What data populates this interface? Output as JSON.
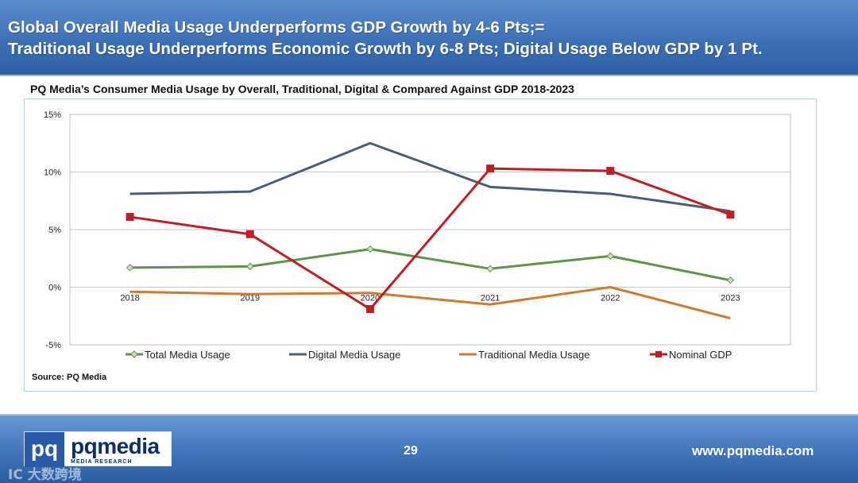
{
  "header": {
    "line1": "Global Overall Media Usage Underperforms GDP Growth by 4-6 Pts;=",
    "line2": "Traditional Usage Underperforms Economic Growth by 6-8 Pts; Digital Usage Below GDP by 1 Pt."
  },
  "chart_data": {
    "type": "line",
    "title": "PQ Media’s Consumer Media Usage by Overall, Traditional, Digital & Compared Against GDP 2018-2023",
    "x": [
      "2018",
      "2019",
      "2020",
      "2021",
      "2022",
      "2023"
    ],
    "y_ticks": [
      "15%",
      "10%",
      "5%",
      "0%",
      "-5%"
    ],
    "ylim": [
      -5,
      15
    ],
    "grid": true,
    "legend_position": "bottom",
    "series": [
      {
        "name": "Total Media Usage",
        "color": "#5e9447",
        "marker": "diamond",
        "values": [
          1.7,
          1.8,
          3.3,
          1.6,
          2.7,
          0.6
        ]
      },
      {
        "name": "Digital Media Usage",
        "color": "#4a5d78",
        "marker": "none",
        "values": [
          8.1,
          8.3,
          12.5,
          8.7,
          8.1,
          6.6
        ]
      },
      {
        "name": "Traditional Media Usage",
        "color": "#d07a2f",
        "marker": "none",
        "values": [
          -0.4,
          -0.6,
          -0.5,
          -1.5,
          0.0,
          -2.7
        ]
      },
      {
        "name": "Nominal GDP",
        "color": "#bf1f24",
        "marker": "square",
        "values": [
          6.1,
          4.6,
          -1.9,
          10.3,
          10.1,
          6.3
        ]
      }
    ]
  },
  "source": "Source: PQ Media",
  "footer": {
    "logo_mark": "pq",
    "logo_word": "pqmedia",
    "logo_tagline": "MEDIA RESEARCH",
    "page_number": "29",
    "website": "www.pqmedia.com",
    "watermark": "IC 大数跨境"
  }
}
